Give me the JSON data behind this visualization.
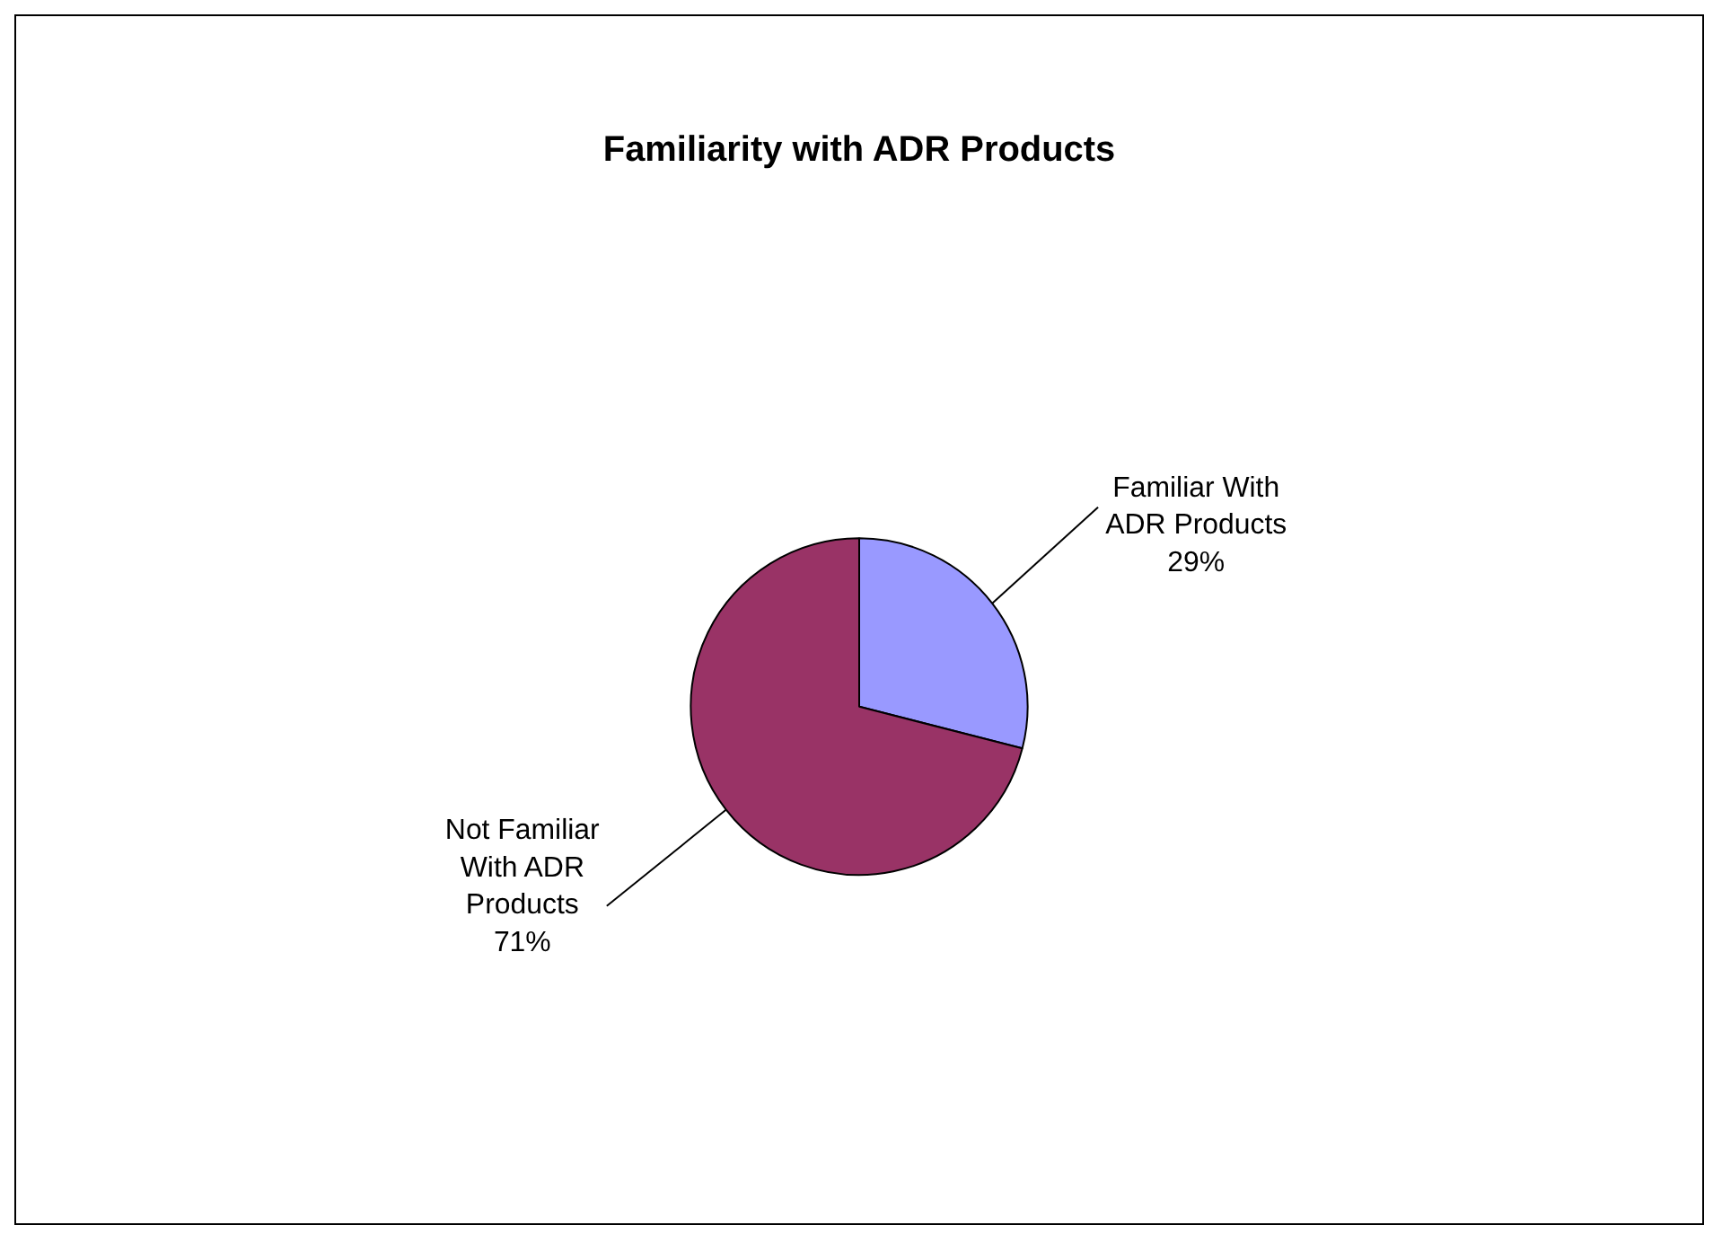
{
  "chart_data": {
    "type": "pie",
    "title": "Familiarity with ADR Products",
    "categories": [
      "Familiar With ADR Products",
      "Not Familiar With ADR Products"
    ],
    "values": [
      29,
      71
    ],
    "colors": [
      "#9999ff",
      "#993366"
    ],
    "value_labels": [
      "29%",
      "71%"
    ],
    "legend": false
  }
}
